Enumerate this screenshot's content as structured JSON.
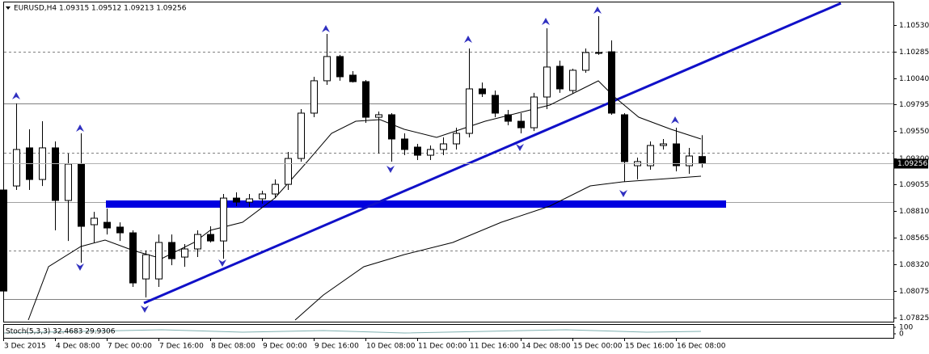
{
  "chart_data": {
    "type": "candlestick",
    "title": "EURUSD,H4  1.09315 1.09512 1.09213 1.09256",
    "indicator_label": "Stoch(5,3,3) 32.4683 29.9306",
    "indicator_ticks": [
      100,
      0
    ],
    "last_price": 1.09256,
    "categories": [
      "3 Dec 2015",
      null,
      null,
      null,
      "4 Dec 08:00",
      null,
      null,
      null,
      "7 Dec 00:00",
      null,
      null,
      null,
      "7 Dec 16:00",
      null,
      null,
      null,
      "8 Dec 08:00",
      null,
      null,
      null,
      "9 Dec 00:00",
      null,
      null,
      null,
      "9 Dec 16:00",
      null,
      null,
      null,
      "10 Dec 08:00",
      null,
      null,
      null,
      "11 Dec 00:00",
      null,
      null,
      null,
      "11 Dec 16:00",
      null,
      null,
      null,
      "14 Dec 08:00",
      null,
      null,
      null,
      "15 Dec 00:00",
      null,
      null,
      null,
      "15 Dec 16:00",
      null,
      null,
      null,
      "16 Dec 08:00",
      null,
      null
    ],
    "open": [
      1.09006,
      1.09043,
      1.09395,
      1.09103,
      1.09395,
      1.08909,
      1.09245,
      1.08685,
      1.08707,
      1.08663,
      1.0861,
      1.08184,
      1.08184,
      1.08521,
      1.08386,
      1.08461,
      1.08595,
      1.08535,
      1.08931,
      1.08894,
      1.08924,
      1.08969,
      1.09058,
      1.09297,
      1.09716,
      1.10015,
      1.10239,
      1.10067,
      1.10007,
      1.09678,
      1.09701,
      1.09477,
      1.09402,
      1.09327,
      1.0938,
      1.09432,
      1.09529,
      1.0994,
      1.0988,
      1.09701,
      1.09641,
      1.09581,
      1.09865,
      1.10149,
      1.09925,
      1.10112,
      1.10269,
      1.10283,
      1.09701,
      1.0923,
      1.0923,
      1.09417,
      1.09432,
      1.0923,
      1.09315
    ],
    "high": [
      1.09043,
      1.09805,
      1.09566,
      1.09641,
      1.09454,
      1.09342,
      1.09529,
      1.08804,
      1.08834,
      1.08707,
      1.08633,
      1.08446,
      1.08595,
      1.08595,
      1.08506,
      1.08633,
      1.0867,
      1.08969,
      1.08984,
      1.08969,
      1.08999,
      1.09103,
      1.09357,
      1.09753,
      1.10052,
      1.10448,
      1.10254,
      1.10104,
      1.10022,
      1.09731,
      1.09716,
      1.09529,
      1.09432,
      1.09417,
      1.09492,
      1.09581,
      1.10313,
      1.09999,
      1.09925,
      1.09746,
      1.09716,
      1.09903,
      1.105,
      1.10201,
      1.10127,
      1.10313,
      1.10612,
      1.10388,
      1.09716,
      1.09305,
      1.09454,
      1.09477,
      1.09581,
      1.09395,
      1.09512
    ],
    "low": [
      1.07998,
      1.09006,
      1.09006,
      1.09043,
      1.08633,
      1.08535,
      1.08334,
      1.08521,
      1.08595,
      1.08535,
      1.0811,
      1.08013,
      1.0811,
      1.08311,
      1.08296,
      1.08386,
      1.08521,
      1.08371,
      1.08857,
      1.08849,
      1.08879,
      1.08931,
      1.09006,
      1.09268,
      1.09678,
      1.09977,
      1.10015,
      1.09999,
      1.09626,
      1.09342,
      1.09268,
      1.09327,
      1.09283,
      1.09283,
      1.09327,
      1.0938,
      1.09492,
      1.09865,
      1.09678,
      1.09604,
      1.09529,
      1.09551,
      1.09753,
      1.09903,
      1.09895,
      1.10089,
      1.10254,
      1.09701,
      1.09081,
      1.09103,
      1.09193,
      1.0938,
      1.09178,
      1.09155,
      1.09213
    ],
    "close": [
      1.08072,
      1.0938,
      1.09103,
      1.09395,
      1.08909,
      1.09245,
      1.0867,
      1.08745,
      1.08655,
      1.0861,
      1.08147,
      1.08408,
      1.08521,
      1.08371,
      1.08461,
      1.08595,
      1.08535,
      1.08931,
      1.08894,
      1.08924,
      1.08969,
      1.09058,
      1.09297,
      1.09716,
      1.10015,
      1.10239,
      1.10052,
      1.10007,
      1.09678,
      1.09701,
      1.09477,
      1.0938,
      1.09327,
      1.0938,
      1.09432,
      1.09529,
      1.0994,
      1.09895,
      1.09716,
      1.09641,
      1.09581,
      1.09865,
      1.10142,
      1.0994,
      1.10112,
      1.10276,
      1.10276,
      1.09716,
      1.09268,
      1.09268,
      1.09417,
      1.09432,
      1.0923,
      1.0932,
      1.09256
    ],
    "ylim": [
      1.07789,
      1.10724
    ],
    "yticks": [
      {
        "value": 1.1053,
        "label": "1.10530"
      },
      {
        "value": 1.10285,
        "label": "1.10285"
      },
      {
        "value": 1.1004,
        "label": "1.10040"
      },
      {
        "value": 1.09795,
        "label": "1.09795"
      },
      {
        "value": 1.0955,
        "label": "1.09550"
      },
      {
        "value": 1.093,
        "label": "1.09300"
      },
      {
        "value": 1.09055,
        "label": "1.09055"
      },
      {
        "value": 1.0881,
        "label": "1.08810"
      },
      {
        "value": 1.08565,
        "label": "1.08565"
      },
      {
        "value": 1.0832,
        "label": "1.08320"
      },
      {
        "value": 1.08075,
        "label": "1.08075"
      },
      {
        "value": 1.07825,
        "label": "1.07825"
      }
    ],
    "up_color": "#ffffff",
    "down_color": "#000000"
  }
}
